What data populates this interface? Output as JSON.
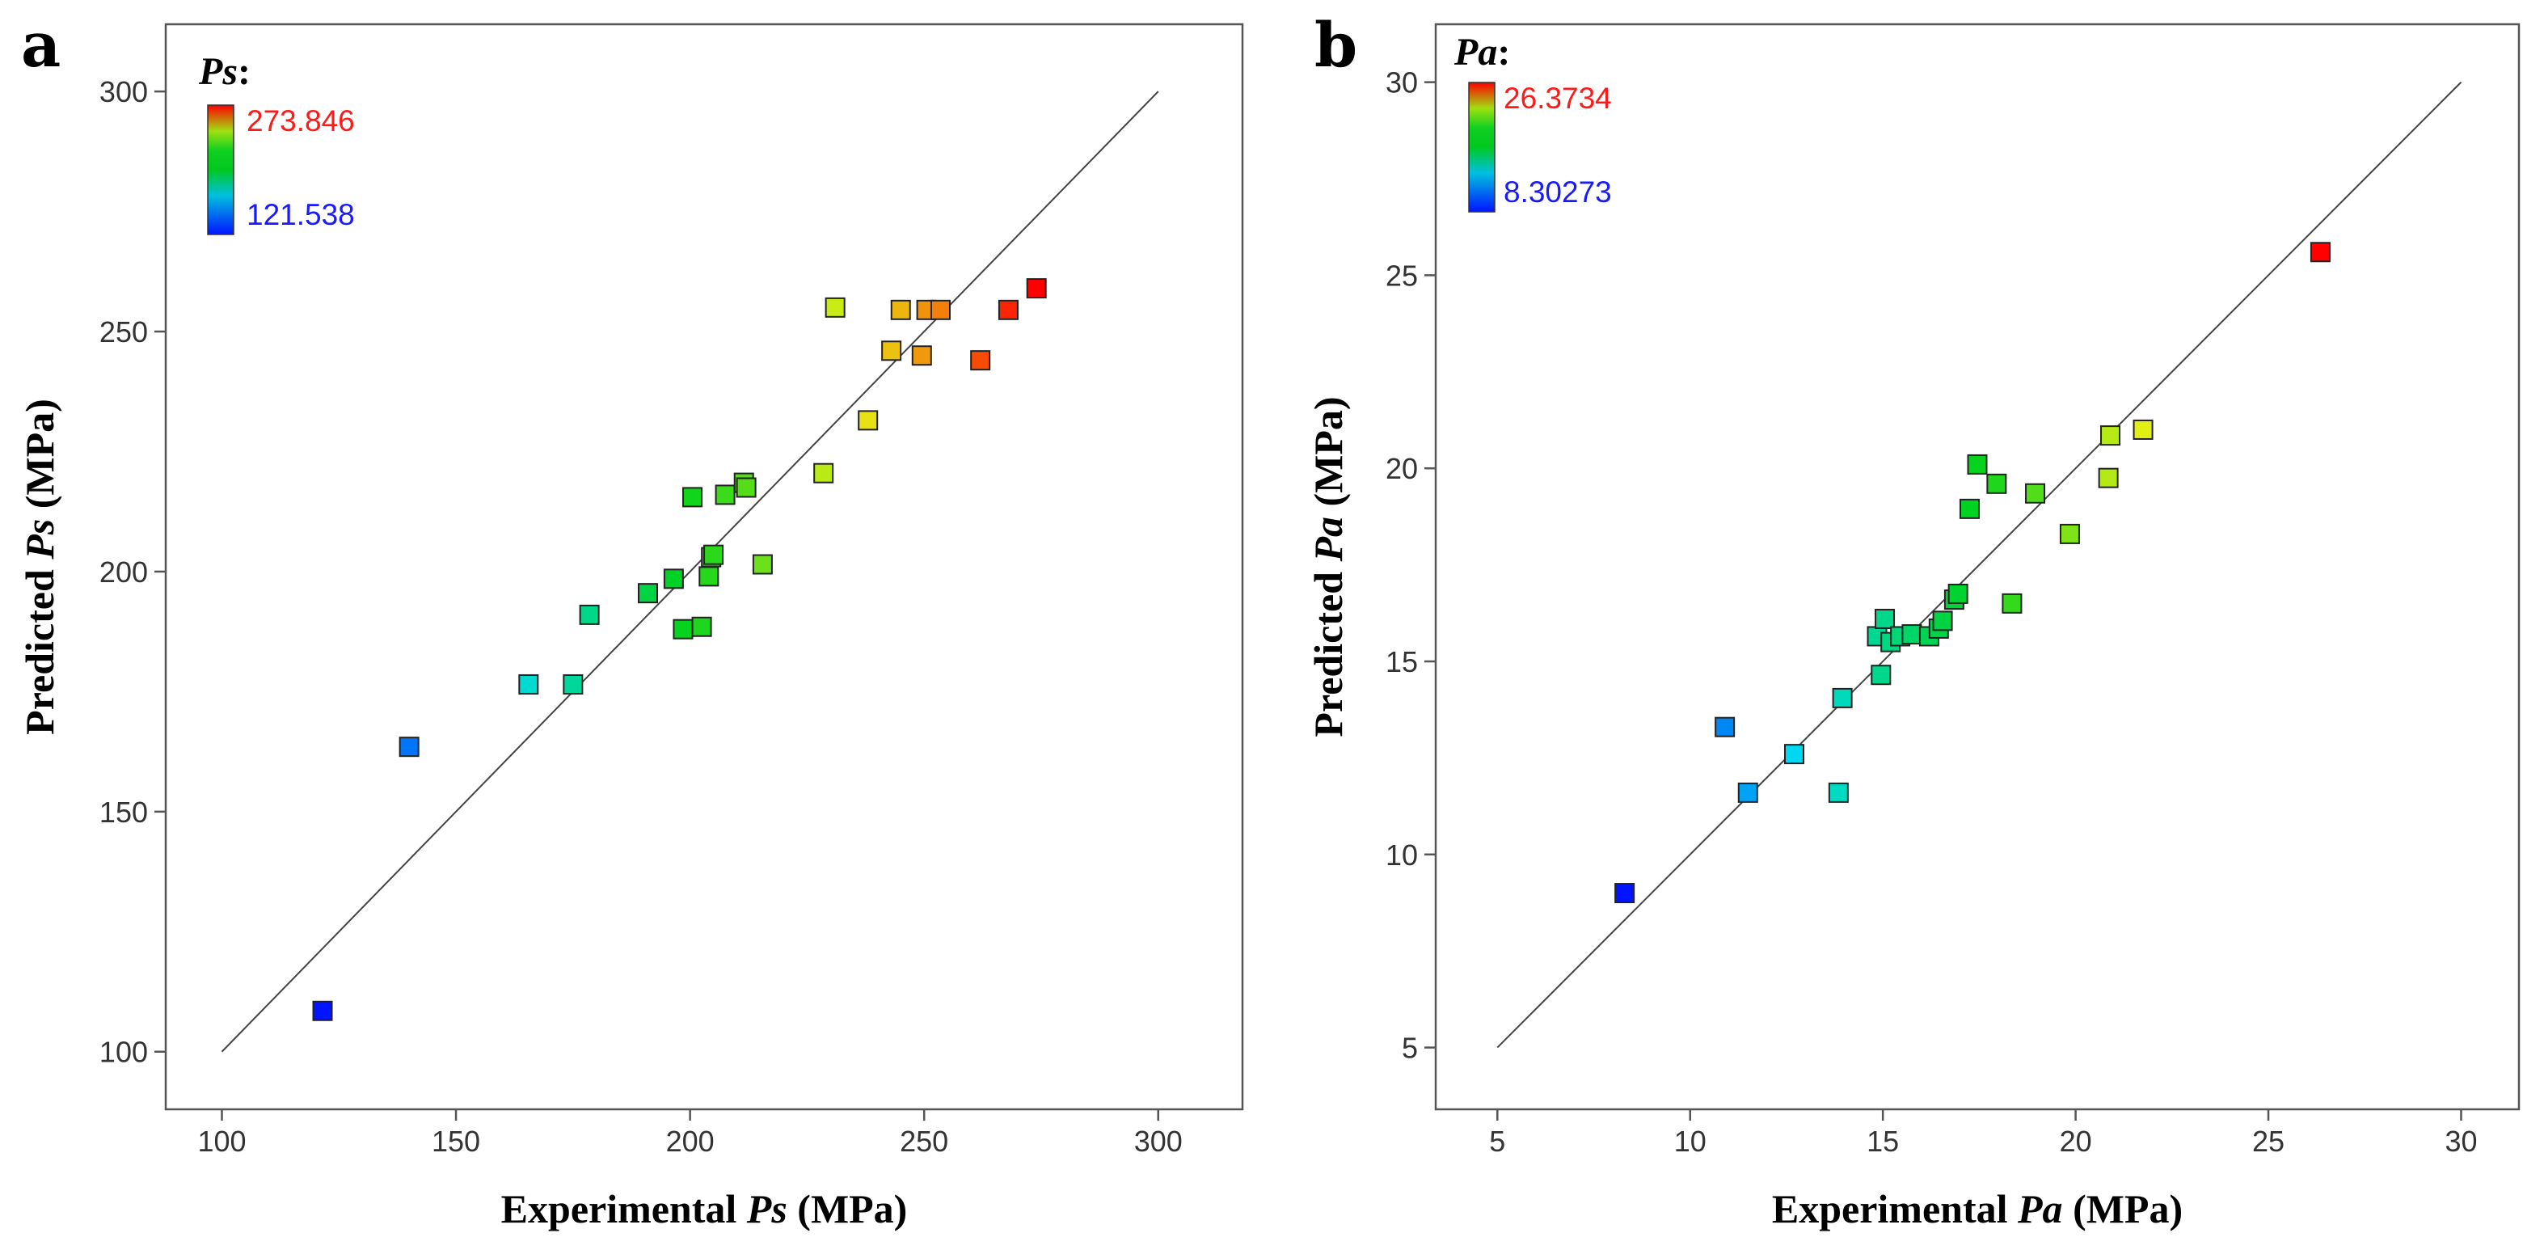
{
  "figure": {
    "panels": [
      "a",
      "b"
    ]
  },
  "chart_data": [
    {
      "type": "scatter",
      "panel_label": "a",
      "title": "",
      "xlabel": {
        "prefix": "Experimental ",
        "var": "Ps",
        "suffix": " (MPa)"
      },
      "ylabel": {
        "prefix": "Predicted ",
        "var": "Ps",
        "suffix": " (MPa)"
      },
      "xlim": [
        88,
        318
      ],
      "ylim": [
        88,
        314
      ],
      "xticks": [
        100,
        150,
        200,
        250,
        300
      ],
      "yticks": [
        100,
        150,
        200,
        250,
        300
      ],
      "reference_line": {
        "from": [
          100,
          100
        ],
        "to": [
          300,
          300
        ]
      },
      "legend": {
        "title": "Ps",
        "max_label": "273.846",
        "min_label": "121.538",
        "max": 273.846,
        "min": 121.538,
        "position": "top-left"
      },
      "points": [
        {
          "x": 121.5,
          "y": 108.5
        },
        {
          "x": 140.0,
          "y": 163.5
        },
        {
          "x": 165.5,
          "y": 176.5
        },
        {
          "x": 175.0,
          "y": 176.5
        },
        {
          "x": 178.5,
          "y": 191.0
        },
        {
          "x": 191.0,
          "y": 195.5
        },
        {
          "x": 196.5,
          "y": 198.5
        },
        {
          "x": 198.5,
          "y": 188.0
        },
        {
          "x": 200.5,
          "y": 215.5
        },
        {
          "x": 202.5,
          "y": 188.5
        },
        {
          "x": 204.0,
          "y": 199.0
        },
        {
          "x": 204.5,
          "y": 203.0
        },
        {
          "x": 205.0,
          "y": 203.5
        },
        {
          "x": 207.5,
          "y": 216.0
        },
        {
          "x": 211.5,
          "y": 218.5
        },
        {
          "x": 212.0,
          "y": 217.5
        },
        {
          "x": 215.5,
          "y": 201.5
        },
        {
          "x": 228.5,
          "y": 220.5
        },
        {
          "x": 231.0,
          "y": 255.0
        },
        {
          "x": 238.0,
          "y": 231.5
        },
        {
          "x": 243.0,
          "y": 246.0
        },
        {
          "x": 245.0,
          "y": 254.5
        },
        {
          "x": 249.5,
          "y": 245.0
        },
        {
          "x": 250.5,
          "y": 254.5
        },
        {
          "x": 253.5,
          "y": 254.5
        },
        {
          "x": 262.0,
          "y": 244.0
        },
        {
          "x": 268.0,
          "y": 254.5
        },
        {
          "x": 274.0,
          "y": 259.0
        }
      ]
    },
    {
      "type": "scatter",
      "panel_label": "b",
      "title": "",
      "xlabel": {
        "prefix": "Experimental ",
        "var": "Pa",
        "suffix": " (MPa)"
      },
      "ylabel": {
        "prefix": "Predicted ",
        "var": "Pa",
        "suffix": " (MPa)"
      },
      "xlim": [
        3.4,
        31.5
      ],
      "ylim": [
        3.4,
        31.5
      ],
      "xticks": [
        5,
        10,
        15,
        20,
        25,
        30
      ],
      "yticks": [
        5,
        10,
        15,
        20,
        25,
        30
      ],
      "reference_line": {
        "from": [
          5,
          5
        ],
        "to": [
          30,
          30
        ]
      },
      "legend": {
        "title": "Pa",
        "max_label": "26.3734",
        "min_label": "8.30273",
        "max": 26.3734,
        "min": 8.30273,
        "position": "top-left"
      },
      "points": [
        {
          "x": 8.3,
          "y": 9.0
        },
        {
          "x": 10.9,
          "y": 13.3
        },
        {
          "x": 11.5,
          "y": 11.6
        },
        {
          "x": 12.7,
          "y": 12.6
        },
        {
          "x": 13.85,
          "y": 11.6
        },
        {
          "x": 13.95,
          "y": 14.05
        },
        {
          "x": 14.85,
          "y": 15.65
        },
        {
          "x": 14.95,
          "y": 14.65
        },
        {
          "x": 15.05,
          "y": 16.1
        },
        {
          "x": 15.2,
          "y": 15.5
        },
        {
          "x": 15.45,
          "y": 15.65
        },
        {
          "x": 15.75,
          "y": 15.7
        },
        {
          "x": 16.2,
          "y": 15.65
        },
        {
          "x": 16.45,
          "y": 15.85
        },
        {
          "x": 16.55,
          "y": 16.05
        },
        {
          "x": 16.85,
          "y": 16.6
        },
        {
          "x": 16.95,
          "y": 16.75
        },
        {
          "x": 17.25,
          "y": 18.95
        },
        {
          "x": 17.45,
          "y": 20.1
        },
        {
          "x": 17.95,
          "y": 19.6
        },
        {
          "x": 18.35,
          "y": 16.5
        },
        {
          "x": 18.95,
          "y": 19.35
        },
        {
          "x": 19.85,
          "y": 18.3
        },
        {
          "x": 20.85,
          "y": 19.75
        },
        {
          "x": 20.9,
          "y": 20.85
        },
        {
          "x": 21.75,
          "y": 21.0
        },
        {
          "x": 26.35,
          "y": 25.6
        }
      ]
    }
  ]
}
